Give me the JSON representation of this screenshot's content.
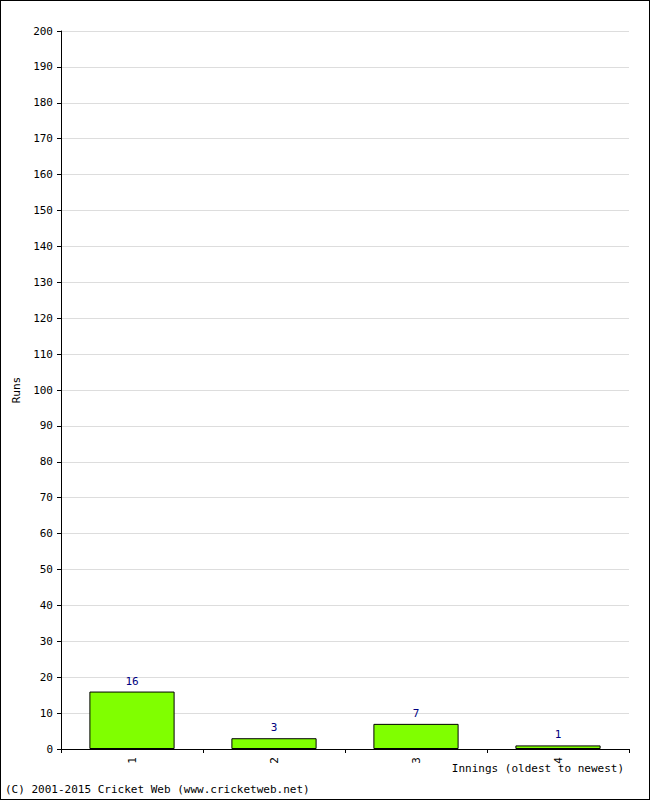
{
  "chart_data": {
    "type": "bar",
    "x_label": "Innings (oldest to newest)",
    "y_label": "Runs",
    "annotations": [
      "(C) 2001-2015 Cricket Web (www.cricketweb.net)"
    ],
    "categories": [
      "1",
      "2",
      "3",
      "4"
    ],
    "values": [
      16,
      3,
      7,
      1
    ],
    "color": "#80ff00",
    "ylim": [
      0,
      200
    ],
    "yticks": [
      0,
      10,
      20,
      30,
      40,
      50,
      60,
      70,
      80,
      90,
      100,
      110,
      120,
      130,
      140,
      150,
      160,
      170,
      180,
      190,
      200
    ],
    "grid": true,
    "data_labels": true
  }
}
